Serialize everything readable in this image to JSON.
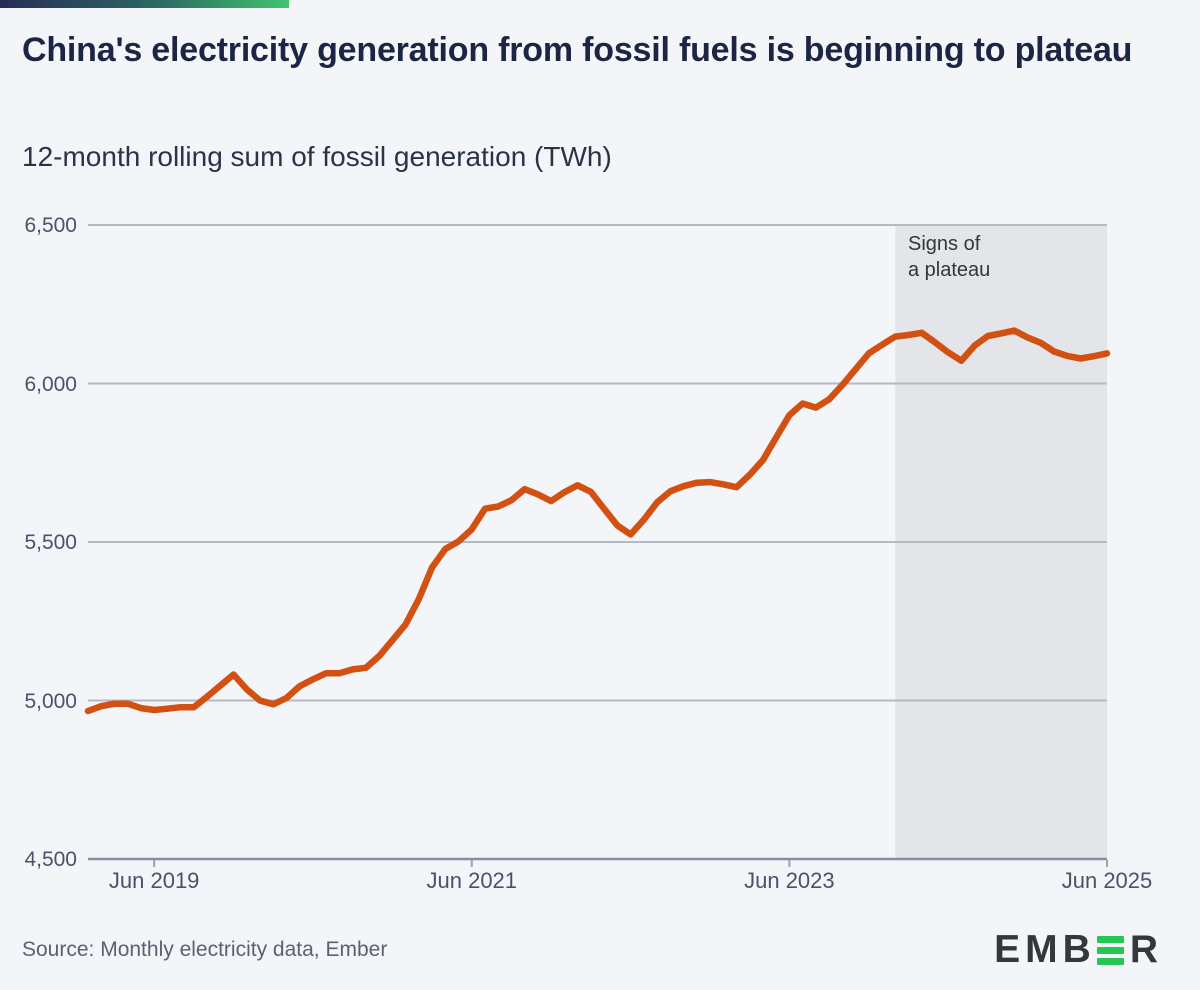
{
  "header": {
    "title": "China's electricity generation from fossil fuels is beginning to plateau",
    "subtitle": "12-month rolling sum of fossil generation (TWh)"
  },
  "footer": {
    "source": "Source: Monthly electricity data, Ember",
    "logo_prefix": "EMB",
    "logo_suffix": "R",
    "logo_text": "EMBER"
  },
  "colors": {
    "background": "#f3f5f9",
    "accent_line": "#d25112",
    "shade": "#e4e5e9",
    "stripe_start": "#272c55",
    "stripe_end": "#41c36d",
    "logo_green": "#27c654",
    "title_text": "#1d2544",
    "grid": "#b3b9c6",
    "axis": "#848ea4"
  },
  "chart_data": {
    "type": "line",
    "title": "China's electricity generation from fossil fuels is beginning to plateau",
    "subtitle": "12-month rolling sum of fossil generation (TWh)",
    "xlabel": "",
    "ylabel": "TWh",
    "ylim": [
      4500,
      6500
    ],
    "grid": true,
    "legend_position": "none",
    "x_unit": "month",
    "x_start": "Jan 2019",
    "x_end": "Jun 2025",
    "yticks": [
      {
        "label": "4,500",
        "value": 4500
      },
      {
        "label": "5,000",
        "value": 5000
      },
      {
        "label": "5,500",
        "value": 5500
      },
      {
        "label": "6,000",
        "value": 6000
      },
      {
        "label": "6,500",
        "value": 6500
      }
    ],
    "xticks": [
      {
        "label": "Jun 2019",
        "index": 5
      },
      {
        "label": "Jun 2021",
        "index": 29
      },
      {
        "label": "Jun 2023",
        "index": 53
      },
      {
        "label": "Jun 2025",
        "index": 77
      }
    ],
    "series": [
      {
        "name": "12-month rolling sum of fossil generation (TWh)",
        "color": "#d25112",
        "values": [
          4967,
          4982,
          4990,
          4990,
          4976,
          4970,
          4974,
          4979,
          4979,
          5012,
          5047,
          5082,
          5035,
          5000,
          4988,
          5008,
          5045,
          5067,
          5086,
          5086,
          5098,
          5103,
          5140,
          5190,
          5240,
          5320,
          5420,
          5478,
          5502,
          5540,
          5605,
          5612,
          5632,
          5667,
          5650,
          5629,
          5657,
          5679,
          5658,
          5605,
          5552,
          5524,
          5570,
          5625,
          5660,
          5676,
          5687,
          5689,
          5682,
          5673,
          5712,
          5758,
          5830,
          5900,
          5937,
          5924,
          5950,
          5995,
          6045,
          6095,
          6122,
          6148,
          6153,
          6160,
          6130,
          6098,
          6072,
          6120,
          6150,
          6158,
          6167,
          6145,
          6128,
          6101,
          6087,
          6079,
          6086,
          6095
        ]
      }
    ],
    "shaded_region": {
      "from_index": 61,
      "to_index": 77,
      "from_month": "Feb 2024",
      "to_month": "Jun 2025",
      "label_line1": "Signs of",
      "label_line2": "a plateau"
    }
  }
}
